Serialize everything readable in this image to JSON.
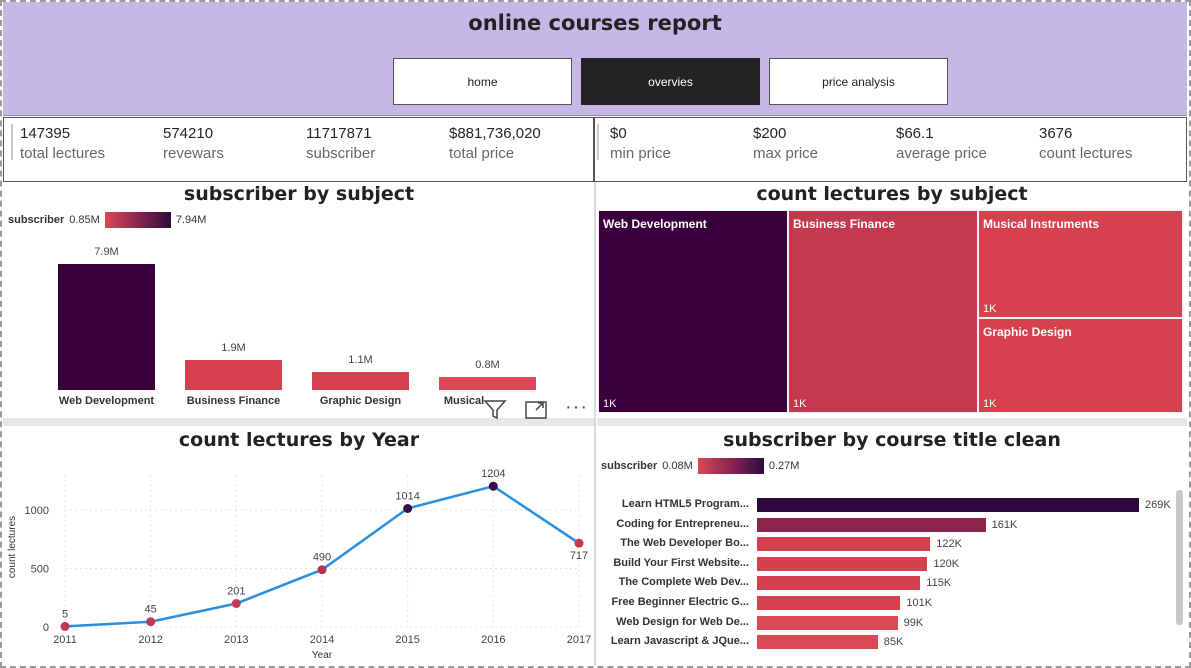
{
  "header": {
    "title": "online courses report",
    "nav": [
      {
        "label": "home",
        "active": false
      },
      {
        "label": "overvies",
        "active": true
      },
      {
        "label": "price analysis",
        "active": false
      }
    ]
  },
  "kpis_left": [
    {
      "value": "147395",
      "label": "total lectures"
    },
    {
      "value": "574210",
      "label": "revewars"
    },
    {
      "value": "11717871",
      "label": "subscriber"
    },
    {
      "value": "$881,736,020",
      "label": "total price"
    }
  ],
  "kpis_right": [
    {
      "value": "$0",
      "label": "min price"
    },
    {
      "value": "$200",
      "label": "max price"
    },
    {
      "value": "$66.1",
      "label": "average price"
    },
    {
      "value": "3676",
      "label": "count lectures"
    }
  ],
  "subscriber_by_subject": {
    "title": "subscriber by subject",
    "legend": {
      "name": "subscriber",
      "min": "0.85M",
      "max": "7.94M"
    },
    "chart_data": {
      "type": "bar",
      "categories": [
        "Web Development",
        "Business Finance",
        "Graphic Design",
        "Musical Instruments"
      ],
      "values": [
        7.9,
        1.9,
        1.1,
        0.8
      ],
      "labels": [
        "7.9M",
        "1.9M",
        "1.1M",
        "0.8M"
      ],
      "colors": [
        "#3a003e",
        "#d6414e",
        "#d6414e",
        "#d94a55"
      ],
      "ylim": [
        0,
        8
      ]
    },
    "truncated_cat": "Musical"
  },
  "count_lectures_by_subject": {
    "title": "count lectures by subject",
    "tiles": [
      {
        "name": "Web Development",
        "value": "1K",
        "color": "#3a003e"
      },
      {
        "name": "Business Finance",
        "value": "1K",
        "color": "#c33a4f"
      },
      {
        "name": "Musical Instruments",
        "value": "1K",
        "color": "#d6414e"
      },
      {
        "name": "Graphic Design",
        "value": "1K",
        "color": "#d6414e"
      }
    ]
  },
  "count_lectures_by_year": {
    "title": "count lectures by Year",
    "chart_data": {
      "type": "line",
      "x": [
        "2011",
        "2012",
        "2013",
        "2014",
        "2015",
        "2016",
        "2017"
      ],
      "y": [
        5,
        45,
        201,
        490,
        1014,
        1204,
        717
      ],
      "xlabel": "Year",
      "ylabel": "count lectures",
      "yticks": [
        "0",
        "500",
        "1000"
      ],
      "ylim": [
        0,
        1300
      ]
    }
  },
  "subscriber_by_course": {
    "title": "subscriber by course title clean",
    "legend": {
      "name": "subscriber",
      "min": "0.08M",
      "max": "0.27M"
    },
    "chart_data": {
      "type": "bar",
      "orientation": "horizontal",
      "categories": [
        "Learn HTML5 Program...",
        "Coding for Entrepreneu...",
        "The Web Developer Bo...",
        "Build Your First Website...",
        "The Complete Web Dev...",
        "Free Beginner Electric G...",
        "Web Design for Web De...",
        "Learn Javascript & JQue..."
      ],
      "values": [
        269,
        161,
        122,
        120,
        115,
        101,
        99,
        85
      ],
      "labels": [
        "269K",
        "161K",
        "122K",
        "120K",
        "115K",
        "101K",
        "99K",
        "85K"
      ],
      "colors": [
        "#2d0a3d",
        "#8f2650",
        "#d4404e",
        "#d4404e",
        "#d4404e",
        "#d6434f",
        "#d94a55",
        "#d94a55"
      ]
    }
  },
  "icons": {
    "filter": "filter-icon",
    "focus": "focus-mode-icon",
    "more": "more-options-icon"
  }
}
